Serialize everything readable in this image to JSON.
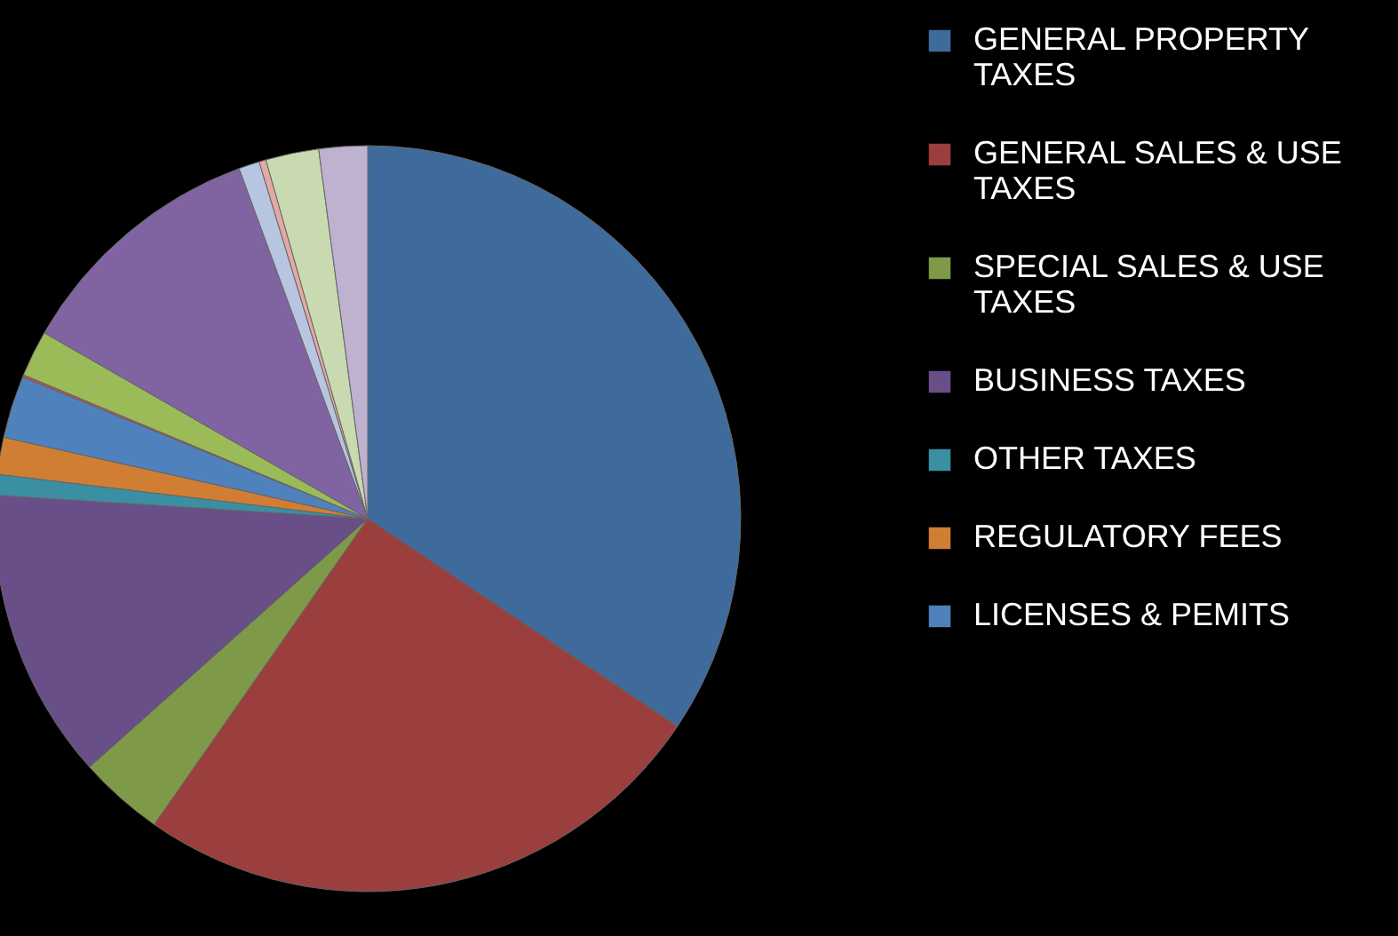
{
  "chart_data": {
    "type": "pie",
    "legend": "right",
    "categories": [
      "GENERAL PROPERTY TAXES",
      "GENERAL SALES & USE TAXES",
      "SPECIAL SALES & USE TAXES",
      "BUSINESS TAXES",
      "OTHER TAXES",
      "REGULATORY FEES",
      "LICENSES & PEMITS",
      null,
      null,
      null,
      null,
      null,
      null,
      null
    ],
    "values": [
      34.4,
      25.3,
      3.7,
      12.6,
      0.9,
      1.6,
      2.7,
      0.1,
      2.0,
      11.1,
      0.9,
      0.3,
      2.3,
      2.1
    ],
    "colors": [
      "#3f6a9c",
      "#9b3f3e",
      "#7e9a48",
      "#684f88",
      "#3a8fa3",
      "#d17e35",
      "#4f81bd",
      "#c0504d",
      "#9bbb59",
      "#8064a2",
      "#b7c5e0",
      "#e3a9a7",
      "#c9dab0",
      "#beb2d0"
    ]
  }
}
